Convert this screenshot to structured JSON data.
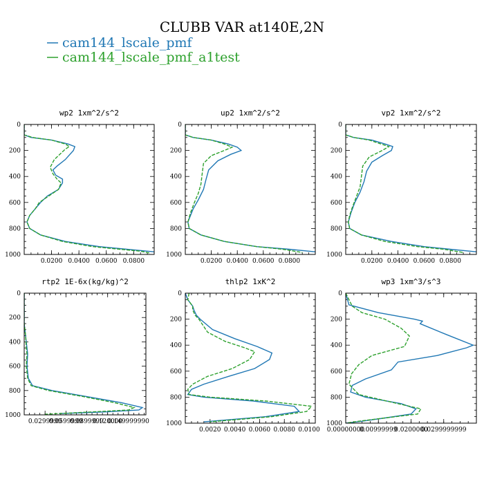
{
  "chart_data": {
    "type": "line",
    "title": "CLUBB VAR at140E,2N",
    "legend": [
      {
        "name": "cam144_lscale_pmf",
        "color": "#1f77b4",
        "dash": "solid"
      },
      {
        "name": "cam144_lscale_pmf_a1test",
        "color": "#2ca02c",
        "dash": "dashed"
      }
    ],
    "panels": [
      {
        "title": "wp2  1xm^2/s^2",
        "xlim": [
          0.0,
          0.095
        ],
        "ylim": [
          1000,
          0
        ],
        "xticks": [
          0.02,
          0.04,
          0.06,
          0.08
        ],
        "xtick_labels": [
          "0.0200",
          "0.0400",
          "0.0600",
          "0.0800"
        ],
        "yticks": [
          0,
          200,
          400,
          600,
          800,
          1000
        ],
        "ytick_labels": [
          "0",
          "200",
          "400",
          "600",
          "800",
          "1000"
        ],
        "series": [
          {
            "name": "cam144_lscale_pmf",
            "x": [
              0.0,
              0.0,
              0.005,
              0.02,
              0.032,
              0.037,
              0.036,
              0.03,
              0.024,
              0.021,
              0.023,
              0.028,
              0.028,
              0.025,
              0.017,
              0.012,
              0.008,
              0.004,
              0.002,
              0.004,
              0.012,
              0.03,
              0.055,
              0.075,
              0.095
            ],
            "y": [
              0,
              80,
              100,
              120,
              150,
              170,
              200,
              270,
              320,
              350,
              390,
              420,
              450,
              500,
              550,
              600,
              650,
              700,
              750,
              800,
              850,
              900,
              940,
              960,
              980
            ]
          },
          {
            "name": "cam144_lscale_pmf_a1test",
            "x": [
              0.0,
              0.0,
              0.006,
              0.02,
              0.03,
              0.033,
              0.03,
              0.022,
              0.019,
              0.021,
              0.024,
              0.027,
              0.025,
              0.018,
              0.011,
              0.008,
              0.004,
              0.002,
              0.004,
              0.012,
              0.028,
              0.05,
              0.07,
              0.085,
              0.092
            ],
            "y": [
              0,
              80,
              100,
              120,
              150,
              170,
              190,
              270,
              330,
              380,
              420,
              450,
              500,
              550,
              600,
              650,
              700,
              750,
              800,
              850,
              900,
              940,
              960,
              975,
              990
            ]
          }
        ]
      },
      {
        "title": "up2  1xm^2/s^2",
        "xlim": [
          0.0,
          0.1
        ],
        "ylim": [
          1000,
          0
        ],
        "xticks": [
          0.02,
          0.04,
          0.06,
          0.08
        ],
        "xtick_labels": [
          "0.0200",
          "0.0400",
          "0.0600",
          "0.0800"
        ],
        "yticks": [
          0,
          200,
          400,
          600,
          800,
          1000
        ],
        "ytick_labels": [
          "0",
          "200",
          "400",
          "600",
          "800",
          "1000"
        ],
        "series": [
          {
            "name": "cam144_lscale_pmf",
            "x": [
              0.0,
              0.0,
              0.006,
              0.02,
              0.033,
              0.04,
              0.043,
              0.035,
              0.025,
              0.018,
              0.016,
              0.014,
              0.01,
              0.006,
              0.002,
              0.003,
              0.012,
              0.03,
              0.055,
              0.08,
              0.1
            ],
            "y": [
              0,
              80,
              100,
              120,
              150,
              175,
              200,
              230,
              280,
              350,
              420,
              500,
              580,
              650,
              750,
              800,
              850,
              900,
              940,
              960,
              980
            ]
          },
          {
            "name": "cam144_lscale_pmf_a1test",
            "x": [
              0.0,
              0.0,
              0.006,
              0.02,
              0.03,
              0.036,
              0.03,
              0.02,
              0.014,
              0.013,
              0.012,
              0.01,
              0.007,
              0.004,
              0.002,
              0.003,
              0.012,
              0.03,
              0.055,
              0.075,
              0.09
            ],
            "y": [
              0,
              80,
              100,
              120,
              150,
              175,
              200,
              240,
              300,
              380,
              460,
              530,
              600,
              680,
              750,
              800,
              850,
              900,
              940,
              960,
              985
            ]
          }
        ]
      },
      {
        "title": "vp2  1xm^2/s^2",
        "xlim": [
          0.0,
          0.1
        ],
        "ylim": [
          1000,
          0
        ],
        "xticks": [
          0.02,
          0.04,
          0.06,
          0.08
        ],
        "xtick_labels": [
          "0.0200",
          "0.0400",
          "0.0600",
          "0.0800"
        ],
        "yticks": [
          0,
          200,
          400,
          600,
          800,
          1000
        ],
        "ytick_labels": [
          "0",
          "200",
          "400",
          "600",
          "800",
          "1000"
        ],
        "series": [
          {
            "name": "cam144_lscale_pmf",
            "x": [
              0.0,
              0.0,
              0.006,
              0.02,
              0.03,
              0.036,
              0.035,
              0.028,
              0.02,
              0.016,
              0.014,
              0.011,
              0.007,
              0.004,
              0.002,
              0.003,
              0.012,
              0.035,
              0.06,
              0.08,
              0.1
            ],
            "y": [
              0,
              80,
              100,
              120,
              150,
              170,
              200,
              240,
              290,
              360,
              440,
              520,
              600,
              680,
              750,
              800,
              850,
              900,
              940,
              960,
              980
            ]
          },
          {
            "name": "cam144_lscale_pmf_a1test",
            "x": [
              0.0,
              0.0,
              0.006,
              0.018,
              0.027,
              0.033,
              0.028,
              0.018,
              0.013,
              0.012,
              0.011,
              0.008,
              0.005,
              0.003,
              0.002,
              0.003,
              0.012,
              0.03,
              0.055,
              0.075,
              0.09
            ],
            "y": [
              0,
              80,
              100,
              120,
              150,
              170,
              200,
              250,
              320,
              400,
              480,
              560,
              640,
              700,
              750,
              800,
              850,
              900,
              940,
              960,
              985
            ]
          }
        ]
      },
      {
        "title": "rtp2  1E-6x(kg/kg)^2",
        "xlim": [
          0.0,
          0.175
        ],
        "ylim": [
          1000,
          0
        ],
        "xticks": [
          0.03,
          0.06,
          0.09,
          0.12,
          0.15
        ],
        "xtick_labels": [
          "0.0299999",
          "0.0599999",
          "0.0899999",
          "0.120000",
          "0.149999990"
        ],
        "yticks": [
          0,
          200,
          400,
          600,
          800,
          1000
        ],
        "ytick_labels": [
          "0",
          "200",
          "400",
          "600",
          "800",
          "1000"
        ],
        "series": [
          {
            "name": "cam144_lscale_pmf",
            "x": [
              0.0,
              0.0,
              0.002,
              0.004,
              0.005,
              0.004,
              0.006,
              0.012,
              0.04,
              0.09,
              0.14,
              0.17,
              0.165,
              0.12,
              0.05
            ],
            "y": [
              0,
              250,
              350,
              450,
              500,
              600,
              700,
              760,
              800,
              850,
              900,
              940,
              960,
              975,
              990
            ]
          },
          {
            "name": "cam144_lscale_pmf_a1test",
            "x": [
              0.0,
              0.0,
              0.002,
              0.003,
              0.004,
              0.003,
              0.005,
              0.01,
              0.035,
              0.085,
              0.13,
              0.158,
              0.15,
              0.1,
              0.03
            ],
            "y": [
              0,
              250,
              350,
              450,
              500,
              600,
              700,
              760,
              800,
              850,
              900,
              940,
              960,
              975,
              995
            ]
          }
        ]
      },
      {
        "title": "thlp2  1xK^2",
        "xlim": [
          0.0,
          0.0105
        ],
        "ylim": [
          1000,
          0
        ],
        "xticks": [
          0.002,
          0.004,
          0.006,
          0.008,
          0.01
        ],
        "xtick_labels": [
          "0.0020",
          "0.0040",
          "0.0060",
          "0.0080",
          "0.0100"
        ],
        "yticks": [
          0,
          200,
          400,
          600,
          800,
          1000
        ],
        "ytick_labels": [
          "0",
          "200",
          "400",
          "600",
          "800",
          "1000"
        ],
        "series": [
          {
            "name": "cam144_lscale_pmf",
            "x": [
              0.0,
              0.0002,
              0.0006,
              0.0007,
              0.0009,
              0.0012,
              0.0022,
              0.004,
              0.0058,
              0.007,
              0.0068,
              0.0056,
              0.0035,
              0.0015,
              0.0005,
              0.0002,
              0.0015,
              0.0055,
              0.0088,
              0.0092,
              0.0065,
              0.0015
            ],
            "y": [
              0,
              50,
              100,
              130,
              170,
              200,
              280,
              350,
              410,
              460,
              510,
              580,
              640,
              700,
              740,
              780,
              800,
              830,
              870,
              910,
              950,
              990
            ]
          },
          {
            "name": "cam144_lscale_pmf_a1test",
            "x": [
              0.0003,
              0.0002,
              0.0006,
              0.0006,
              0.0008,
              0.0011,
              0.0018,
              0.0032,
              0.0048,
              0.0056,
              0.0052,
              0.0038,
              0.0018,
              0.0006,
              0.0002,
              0.0003,
              0.002,
              0.0065,
              0.0102,
              0.0098,
              0.007,
              0.002
            ],
            "y": [
              0,
              50,
              100,
              130,
              170,
              200,
              300,
              370,
              420,
              450,
              510,
              580,
              640,
              700,
              740,
              780,
              800,
              830,
              870,
              910,
              950,
              990
            ]
          }
        ]
      },
      {
        "title": "wp3  1xm^3/s^3",
        "xlim": [
          0.0,
          0.04
        ],
        "ylim": [
          1000,
          0
        ],
        "xticks": [
          0.0,
          0.01,
          0.02,
          0.03
        ],
        "xtick_labels": [
          "0.00000000",
          "0.00999999",
          "0.0200000",
          "0.0299999999"
        ],
        "yticks": [
          0,
          200,
          400,
          600,
          800,
          1000
        ],
        "ytick_labels": [
          "0",
          "200",
          "400",
          "600",
          "800",
          "1000"
        ],
        "series": [
          {
            "name": "cam144_lscale_pmf",
            "x": [
              0.0,
              0.001,
              0.01,
              0.021,
              0.0235,
              0.0228,
              0.031,
              0.039,
              0.037,
              0.028,
              0.016,
              0.014,
              0.006,
              0.002,
              0.0015,
              0.006,
              0.017,
              0.0215,
              0.02,
              0.012,
              0.005,
              0.0
            ],
            "y": [
              0,
              90,
              150,
              200,
              215,
              235,
              320,
              400,
              420,
              480,
              530,
              590,
              660,
              710,
              760,
              800,
              850,
              890,
              930,
              960,
              985,
              1000
            ]
          },
          {
            "name": "cam144_lscale_pmf_a1test",
            "x": [
              0.0,
              0.002,
              0.005,
              0.012,
              0.017,
              0.0195,
              0.018,
              0.008,
              0.004,
              0.0018,
              0.001,
              0.004,
              0.016,
              0.023,
              0.022,
              0.012,
              0.004,
              0.0
            ],
            "y": [
              0,
              100,
              150,
              200,
              270,
              330,
              410,
              480,
              550,
              620,
              700,
              780,
              850,
              890,
              930,
              960,
              985,
              1000
            ]
          }
        ]
      }
    ]
  }
}
